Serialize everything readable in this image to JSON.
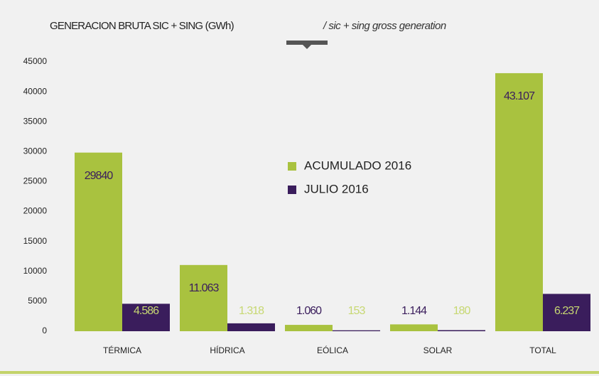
{
  "chart_data": {
    "type": "bar",
    "title": "GENERACION BRUTA SIC + SING (GWh)",
    "subtitle": "/  sic + sing gross generation",
    "categories": [
      "TÉRMICA",
      "HÍDRICA",
      "EÓLICA",
      "SOLAR",
      "TOTAL"
    ],
    "series": [
      {
        "name": "ACUMULADO 2016",
        "color": "#a9c23f",
        "values": [
          29840,
          11063,
          1060,
          1144,
          43107
        ],
        "value_labels": [
          "29840",
          "11.063",
          "1.060",
          "1.144",
          "43.107"
        ]
      },
      {
        "name": "JULIO 2016",
        "color": "#3a1d5c",
        "values": [
          4586,
          1318,
          153,
          180,
          6237
        ],
        "value_labels": [
          "4.586",
          "1.318",
          "153",
          "180",
          "6.237"
        ]
      }
    ],
    "ylim": [
      0,
      45000
    ],
    "yticks": [
      0,
      5000,
      10000,
      15000,
      20000,
      25000,
      30000,
      35000,
      40000,
      45000
    ]
  }
}
